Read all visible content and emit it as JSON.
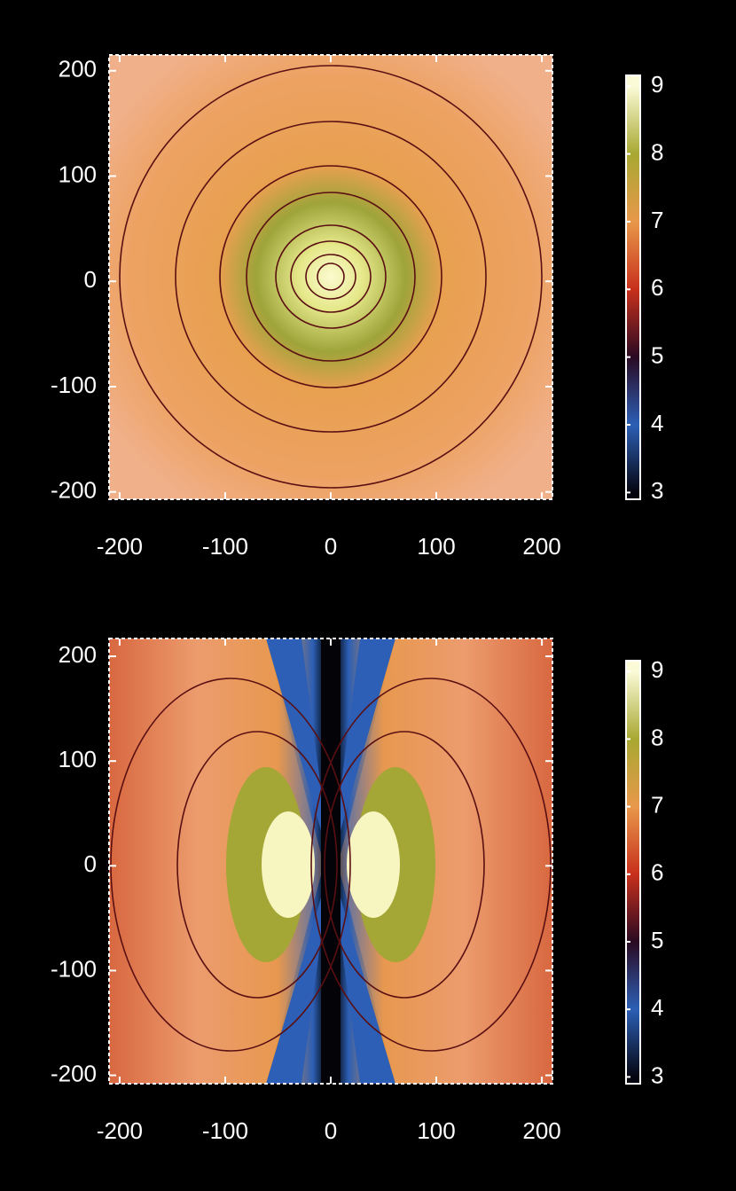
{
  "chart_data": [
    {
      "type": "heatmap",
      "xlim": [
        -210,
        210
      ],
      "xticks": [
        -200,
        -100,
        0,
        100,
        200
      ],
      "ylim": [
        -207,
        215
      ],
      "yticks": [
        -200,
        -100,
        0,
        100,
        200
      ],
      "colorbar": {
        "lim": [
          2.9,
          9.16
        ],
        "ticks": [
          3,
          4,
          5,
          6,
          7,
          8,
          9
        ],
        "colors": [
          "#050510",
          "#2c5fb5",
          "#2a0a22",
          "#c8301c",
          "#e8984a",
          "#a8a832",
          "#fbfbd8"
        ]
      }
    },
    {
      "type": "heatmap",
      "xlim": [
        -210,
        210
      ],
      "xticks": [
        -200,
        -100,
        0,
        100,
        200
      ],
      "ylim": [
        -208,
        217
      ],
      "yticks": [
        -200,
        -100,
        0,
        100,
        200
      ],
      "colorbar": {
        "lim": [
          2.9,
          9.16
        ],
        "ticks": [
          3,
          4,
          5,
          6,
          7,
          8,
          9
        ],
        "colors": [
          "#050510",
          "#2c5fb5",
          "#2a0a22",
          "#c8301c",
          "#e8984a",
          "#a8a832",
          "#fbfbd8"
        ]
      }
    }
  ]
}
